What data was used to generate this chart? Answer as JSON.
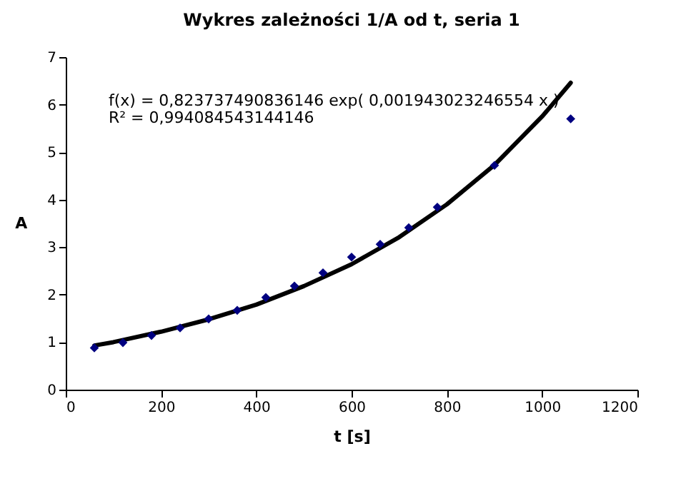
{
  "chart_data": {
    "type": "scatter",
    "title": "Wykres zależności 1/A od t, seria 1",
    "xlabel": "t [s]",
    "ylabel": "A",
    "annotations": [
      "f(x) = 0,823737490836146 exp( 0,001943023246554 x )",
      "R² = 0,994084543144146"
    ],
    "xlim": [
      0,
      1200
    ],
    "xticks": [
      0,
      200,
      400,
      600,
      800,
      1000,
      1200
    ],
    "ylim": [
      0,
      7
    ],
    "yticks": [
      0,
      1,
      2,
      3,
      4,
      5,
      6,
      7
    ],
    "grid": false,
    "marker": "diamond",
    "series": [
      {
        "color": "#000080",
        "x": [
          60,
          120,
          180,
          240,
          300,
          360,
          420,
          480,
          540,
          600,
          660,
          720,
          780,
          900,
          1060
        ],
        "values": [
          0.88,
          0.99,
          1.14,
          1.3,
          1.49,
          1.67,
          1.94,
          2.18,
          2.46,
          2.79,
          3.06,
          3.41,
          3.84,
          4.72,
          5.7
        ]
      },
      {
        "type": "line",
        "marker": "none",
        "color": "#000000",
        "x": [
          60,
          100,
          200,
          300,
          400,
          500,
          600,
          700,
          800,
          900,
          1000,
          1060
        ],
        "values": [
          0.93,
          1.0,
          1.22,
          1.48,
          1.79,
          2.18,
          2.64,
          3.21,
          3.9,
          4.73,
          5.75,
          6.46
        ]
      }
    ]
  }
}
